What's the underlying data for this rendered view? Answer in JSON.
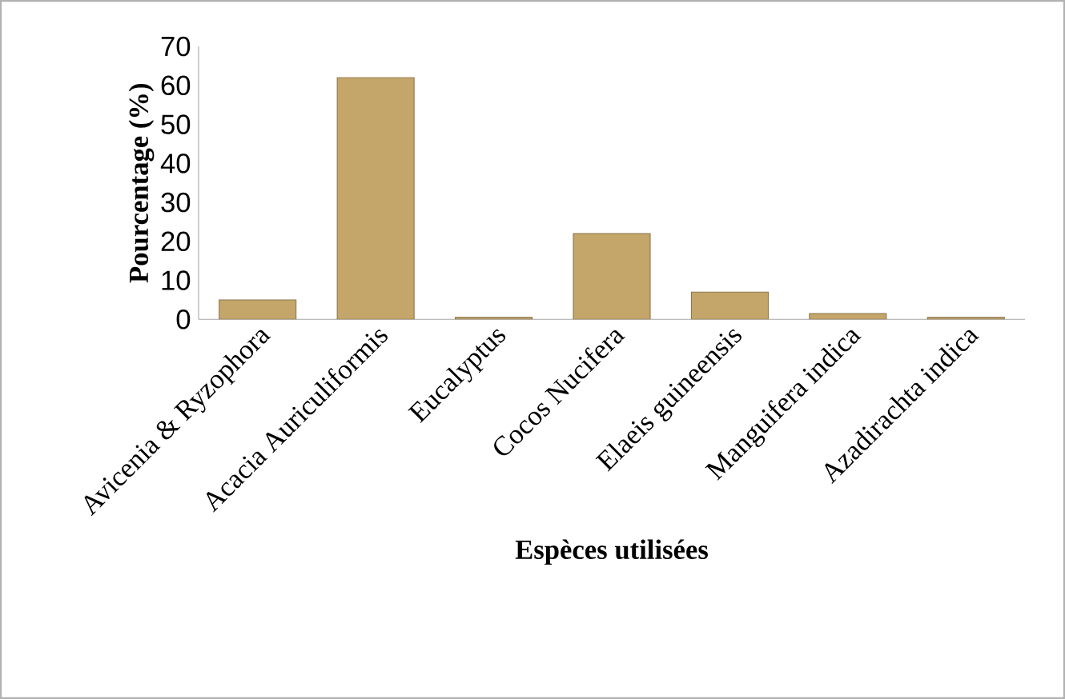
{
  "chart_data": {
    "type": "bar",
    "xlabel": "Espèces utilisées",
    "ylabel": "Pourcentage  (%)",
    "categories": [
      "Avicenia & Ryzophora",
      "Acacia Auriculiformis",
      "Eucalyptus",
      "Cocos Nucifera",
      "Elaeis guineensis",
      "Manguifera indica",
      "Azadirachta indica"
    ],
    "values": [
      5,
      62,
      0.5,
      22,
      7,
      1.5,
      0.5
    ],
    "color": "#c4a66a",
    "ylim": [
      0,
      70
    ],
    "yticks": [
      0,
      10,
      20,
      30,
      40,
      50,
      60,
      70
    ],
    "grid": false
  }
}
